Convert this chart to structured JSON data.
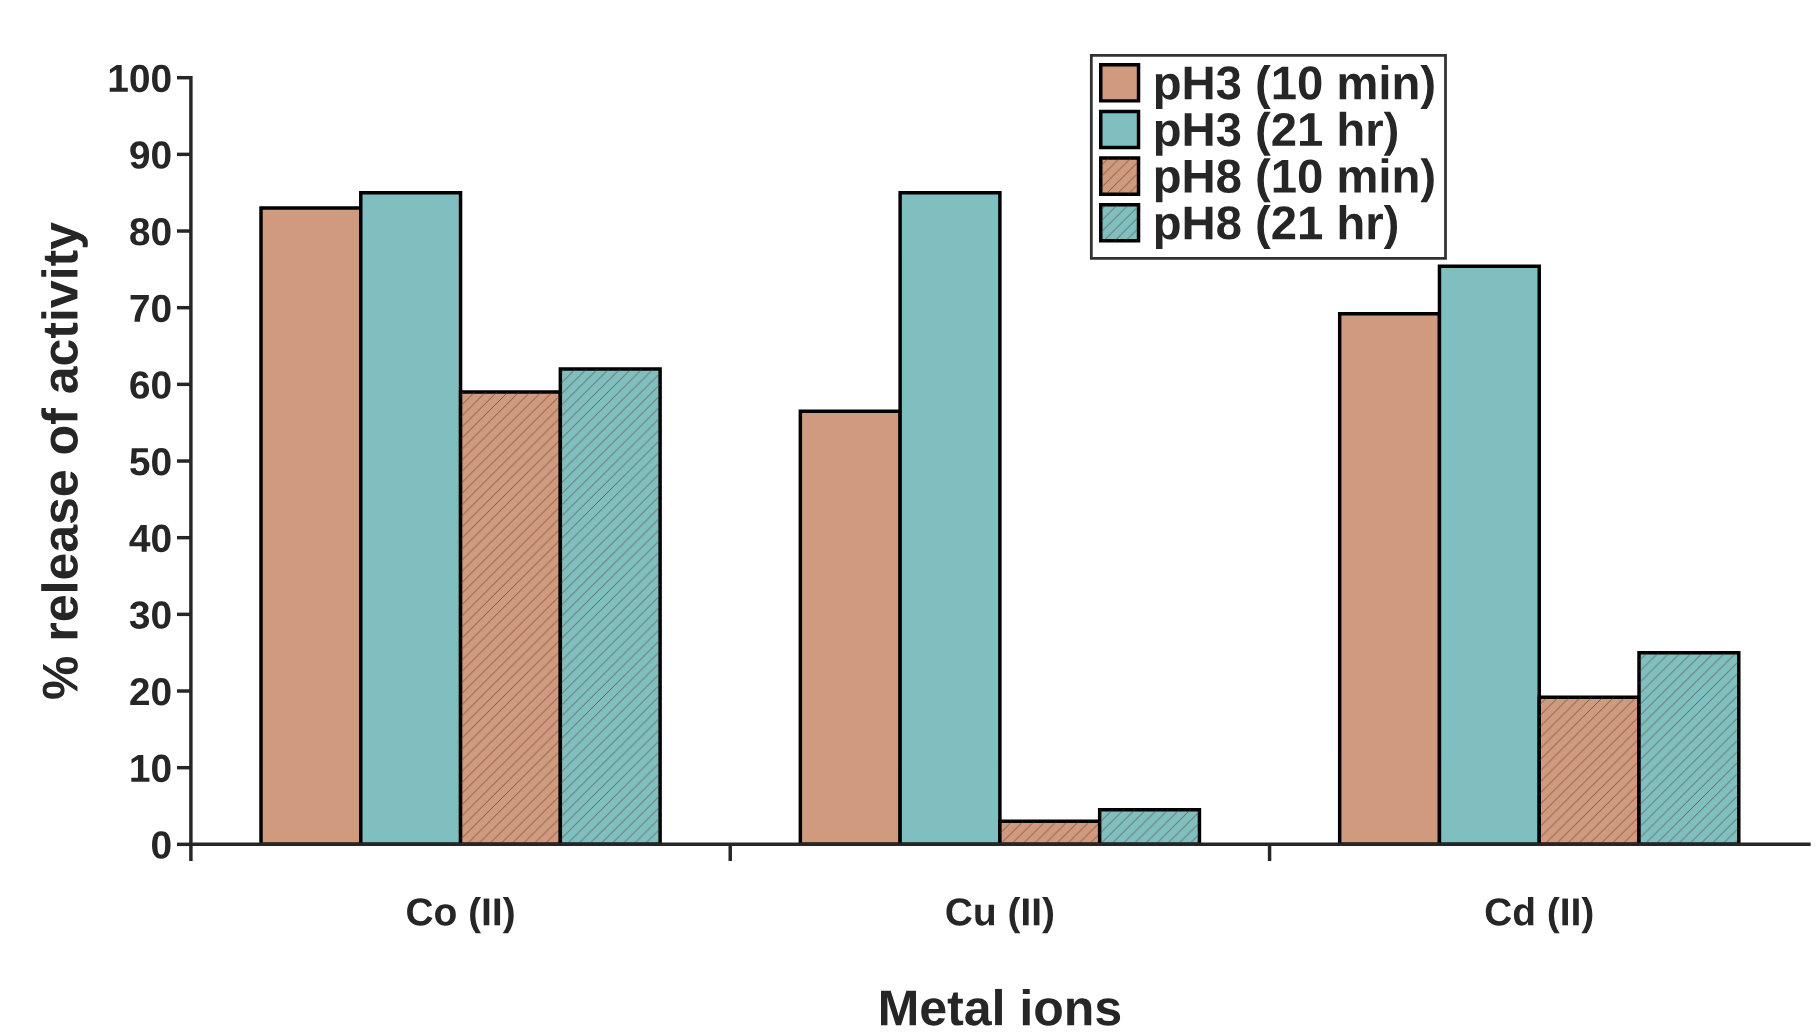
{
  "chart_data": {
    "type": "bar",
    "xlabel": "Metal ions",
    "ylabel": "% release of activity",
    "categories": [
      "Co (II)",
      "Cu (II)",
      "Cd (II)"
    ],
    "series": [
      {
        "name": "pH3 (10 min)",
        "color": "#d09a7e",
        "values": [
          83,
          56.5,
          69.2
        ]
      },
      {
        "name": "pH3 (21 hr)",
        "color": "#80bfbf",
        "values": [
          85,
          85,
          75.4
        ]
      },
      {
        "name": "pH8 (10 min)",
        "color": "#d09a7e",
        "values": [
          59,
          3,
          19.2
        ]
      },
      {
        "name": "pH8 (21 hr)",
        "color": "#80bfbf",
        "values": [
          62,
          4.5,
          25
        ]
      }
    ],
    "ylim": [
      0,
      100
    ],
    "yticks": [
      0,
      10,
      20,
      30,
      40,
      50,
      60,
      70,
      80,
      90,
      100
    ],
    "grid": false,
    "legend": "top right"
  }
}
